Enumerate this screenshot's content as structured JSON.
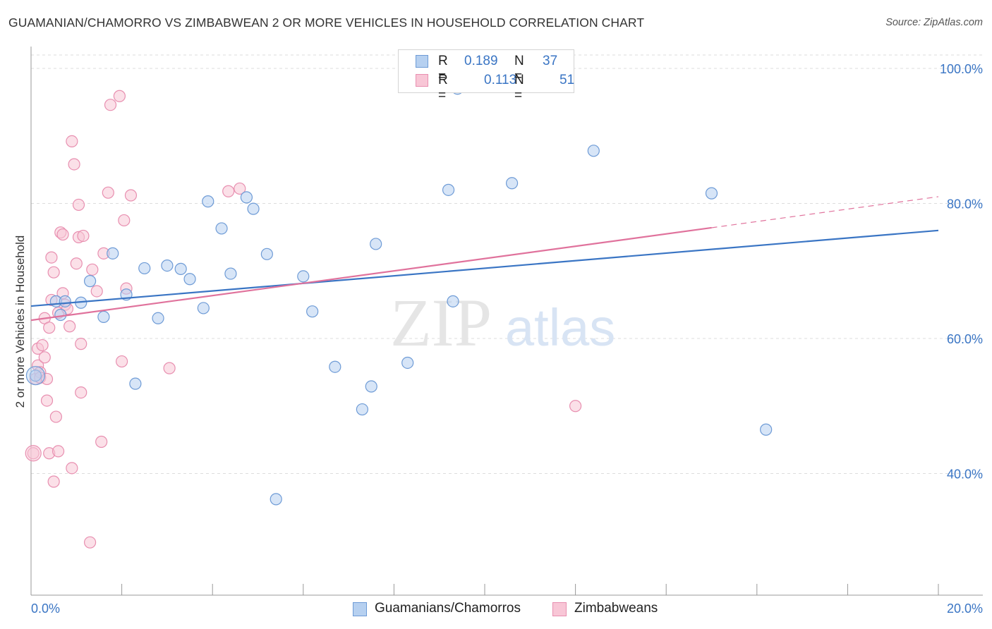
{
  "title": "GUAMANIAN/CHAMORRO VS ZIMBABWEAN 2 OR MORE VEHICLES IN HOUSEHOLD CORRELATION CHART",
  "source": "Source: ZipAtlas.com",
  "watermark": {
    "zip": "ZIP",
    "atlas": "atlas"
  },
  "colors": {
    "blue": "#3a75c4",
    "blue_fill": "#b6d0f0",
    "blue_stroke": "#6e9bd6",
    "pink": "#e0729c",
    "pink_fill": "#f8c6d6",
    "pink_stroke": "#e88fb0",
    "axis_text": "#3a75c4",
    "grid": "#dddddd"
  },
  "legend_top": [
    {
      "r_label": "R =",
      "r_value": "0.189",
      "n_label": "N =",
      "n_value": "37",
      "series": "blue"
    },
    {
      "r_label": "R =",
      "r_value": "0.113",
      "n_label": "N =",
      "n_value": "51",
      "series": "pink"
    }
  ],
  "legend_bottom": [
    {
      "label": "Guamanians/Chamorros",
      "series": "blue"
    },
    {
      "label": "Zimbabweans",
      "series": "pink"
    }
  ],
  "chart_data": {
    "type": "scatter",
    "title": "GUAMANIAN/CHAMORRO VS ZIMBABWEAN 2 OR MORE VEHICLES IN HOUSEHOLD CORRELATION CHART",
    "xlabel": "",
    "ylabel": "2 or more Vehicles in Household",
    "xlim": [
      0,
      20
    ],
    "ylim": [
      20,
      104
    ],
    "x_tick_labels": [
      {
        "value": 0,
        "label": "0.0%"
      },
      {
        "value": 20,
        "label": "20.0%"
      }
    ],
    "x_minor_ticks": [
      0,
      2,
      4,
      6,
      8,
      10,
      12,
      14,
      16,
      18,
      20
    ],
    "y_tick_labels": [
      {
        "value": 100,
        "label": "100.0%"
      },
      {
        "value": 80,
        "label": "80.0%"
      },
      {
        "value": 60,
        "label": "60.0%"
      },
      {
        "value": 40,
        "label": "40.0%"
      }
    ],
    "y_grid": [
      100,
      80,
      60,
      40
    ],
    "grid": true,
    "legend_placement": "top-center",
    "series": [
      {
        "name": "Guamanians/Chamorros",
        "color": "#3a75c4",
        "points": [
          [
            0.1,
            54.5
          ],
          [
            0.55,
            65.5
          ],
          [
            0.65,
            63.5
          ],
          [
            0.75,
            65.5
          ],
          [
            1.1,
            65.3
          ],
          [
            1.3,
            68.5
          ],
          [
            1.6,
            63.2
          ],
          [
            1.8,
            72.6
          ],
          [
            2.1,
            66.5
          ],
          [
            2.3,
            53.3
          ],
          [
            2.5,
            70.4
          ],
          [
            2.8,
            63.0
          ],
          [
            3.0,
            70.8
          ],
          [
            3.3,
            70.3
          ],
          [
            3.5,
            68.8
          ],
          [
            3.8,
            64.5
          ],
          [
            3.9,
            80.3
          ],
          [
            4.2,
            76.3
          ],
          [
            4.4,
            69.6
          ],
          [
            4.75,
            80.9
          ],
          [
            4.9,
            79.2
          ],
          [
            5.2,
            72.5
          ],
          [
            5.4,
            36.2
          ],
          [
            6.0,
            69.2
          ],
          [
            6.2,
            64.0
          ],
          [
            6.7,
            55.8
          ],
          [
            7.3,
            49.5
          ],
          [
            7.5,
            52.9
          ],
          [
            7.6,
            74.0
          ],
          [
            8.3,
            56.4
          ],
          [
            9.2,
            82.0
          ],
          [
            9.3,
            65.5
          ],
          [
            9.4,
            97.0
          ],
          [
            10.6,
            83.0
          ],
          [
            12.4,
            87.8
          ],
          [
            15.0,
            81.5
          ],
          [
            16.2,
            46.5
          ]
        ],
        "trend": {
          "x": [
            0,
            20
          ],
          "y": [
            64.8,
            76.0
          ],
          "dashed_from": null
        }
      },
      {
        "name": "Zimbabweans",
        "color": "#e0729c",
        "points": [
          [
            0.05,
            43.0
          ],
          [
            0.1,
            54.0
          ],
          [
            0.15,
            58.5
          ],
          [
            0.15,
            56.0
          ],
          [
            0.2,
            55.0
          ],
          [
            0.2,
            54.2
          ],
          [
            0.25,
            59.0
          ],
          [
            0.3,
            57.2
          ],
          [
            0.3,
            63.0
          ],
          [
            0.35,
            50.8
          ],
          [
            0.4,
            61.6
          ],
          [
            0.4,
            43.0
          ],
          [
            0.45,
            65.7
          ],
          [
            0.45,
            72.0
          ],
          [
            0.5,
            69.8
          ],
          [
            0.5,
            38.8
          ],
          [
            0.55,
            48.4
          ],
          [
            0.6,
            43.3
          ],
          [
            0.6,
            63.8
          ],
          [
            0.65,
            75.7
          ],
          [
            0.7,
            75.4
          ],
          [
            0.7,
            66.7
          ],
          [
            0.75,
            65.0
          ],
          [
            0.8,
            64.4
          ],
          [
            0.85,
            61.8
          ],
          [
            0.9,
            40.8
          ],
          [
            0.9,
            89.2
          ],
          [
            0.95,
            85.8
          ],
          [
            1.0,
            71.1
          ],
          [
            1.05,
            79.8
          ],
          [
            1.05,
            75.0
          ],
          [
            1.1,
            59.2
          ],
          [
            1.1,
            52.0
          ],
          [
            1.15,
            75.2
          ],
          [
            1.3,
            29.8
          ],
          [
            1.35,
            70.2
          ],
          [
            1.45,
            67.0
          ],
          [
            1.55,
            44.7
          ],
          [
            1.6,
            72.6
          ],
          [
            1.7,
            81.6
          ],
          [
            1.75,
            94.6
          ],
          [
            1.95,
            95.9
          ],
          [
            2.0,
            56.6
          ],
          [
            2.05,
            77.5
          ],
          [
            2.1,
            67.4
          ],
          [
            2.2,
            81.2
          ],
          [
            3.05,
            55.6
          ],
          [
            4.35,
            81.8
          ],
          [
            4.6,
            82.2
          ],
          [
            12.0,
            50.0
          ],
          [
            0.35,
            54.0
          ]
        ],
        "trend": {
          "x": [
            0,
            15
          ],
          "y": [
            62.7,
            76.4
          ],
          "dashed_to": [
            20,
            81.0
          ]
        }
      }
    ]
  }
}
